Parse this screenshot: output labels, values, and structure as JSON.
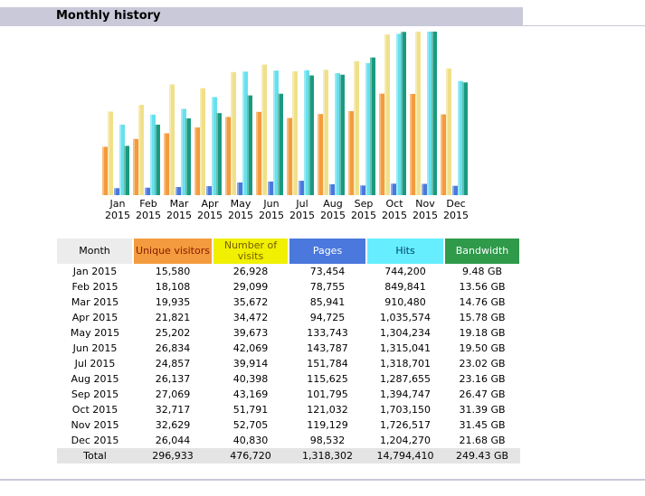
{
  "section": {
    "title": "Monthly history"
  },
  "colors": {
    "unique_visitors": "#f39b3e",
    "visits": "#f0f000",
    "pages": "#4a78dc",
    "hits": "#66eeff",
    "bandwidth": "#2e9a4a",
    "month_header": "#ececec",
    "total_row": "#e4e4e4",
    "header_bar": "#c9c9d9"
  },
  "table": {
    "headers": {
      "month": "Month",
      "unique": "Unique visitors",
      "visits": "Number of visits",
      "pages": "Pages",
      "hits": "Hits",
      "bandwidth": "Bandwidth"
    },
    "rows": [
      {
        "month": "Jan 2015",
        "unique": "15,580",
        "visits": "26,928",
        "pages": "73,454",
        "hits": "744,200",
        "bandwidth": "9.48 GB"
      },
      {
        "month": "Feb 2015",
        "unique": "18,108",
        "visits": "29,099",
        "pages": "78,755",
        "hits": "849,841",
        "bandwidth": "13.56 GB"
      },
      {
        "month": "Mar 2015",
        "unique": "19,935",
        "visits": "35,672",
        "pages": "85,941",
        "hits": "910,480",
        "bandwidth": "14.76 GB"
      },
      {
        "month": "Apr 2015",
        "unique": "21,821",
        "visits": "34,472",
        "pages": "94,725",
        "hits": "1,035,574",
        "bandwidth": "15.78 GB"
      },
      {
        "month": "May 2015",
        "unique": "25,202",
        "visits": "39,673",
        "pages": "133,743",
        "hits": "1,304,234",
        "bandwidth": "19.18 GB"
      },
      {
        "month": "Jun 2015",
        "unique": "26,834",
        "visits": "42,069",
        "pages": "143,787",
        "hits": "1,315,041",
        "bandwidth": "19.50 GB"
      },
      {
        "month": "Jul 2015",
        "unique": "24,857",
        "visits": "39,914",
        "pages": "151,784",
        "hits": "1,318,701",
        "bandwidth": "23.02 GB"
      },
      {
        "month": "Aug 2015",
        "unique": "26,137",
        "visits": "40,398",
        "pages": "115,625",
        "hits": "1,287,655",
        "bandwidth": "23.16 GB"
      },
      {
        "month": "Sep 2015",
        "unique": "27,069",
        "visits": "43,169",
        "pages": "101,795",
        "hits": "1,394,747",
        "bandwidth": "26.47 GB"
      },
      {
        "month": "Oct 2015",
        "unique": "32,717",
        "visits": "51,791",
        "pages": "121,032",
        "hits": "1,703,150",
        "bandwidth": "31.39 GB"
      },
      {
        "month": "Nov 2015",
        "unique": "32,629",
        "visits": "52,705",
        "pages": "119,129",
        "hits": "1,726,517",
        "bandwidth": "31.45 GB"
      },
      {
        "month": "Dec 2015",
        "unique": "26,044",
        "visits": "40,830",
        "pages": "98,532",
        "hits": "1,204,270",
        "bandwidth": "21.68 GB"
      }
    ],
    "total": {
      "month": "Total",
      "unique": "296,933",
      "visits": "476,720",
      "pages": "1,318,302",
      "hits": "14,794,410",
      "bandwidth": "249.43 GB"
    }
  },
  "chart_data": {
    "type": "bar",
    "categories": [
      "Jan 2015",
      "Feb 2015",
      "Mar 2015",
      "Apr 2015",
      "May 2015",
      "Jun 2015",
      "Jul 2015",
      "Aug 2015",
      "Sep 2015",
      "Oct 2015",
      "Nov 2015",
      "Dec 2015"
    ],
    "category_labels": [
      [
        "Jan",
        "2015"
      ],
      [
        "Feb",
        "2015"
      ],
      [
        "Mar",
        "2015"
      ],
      [
        "Apr",
        "2015"
      ],
      [
        "May",
        "2015"
      ],
      [
        "Jun",
        "2015"
      ],
      [
        "Jul",
        "2015"
      ],
      [
        "Aug",
        "2015"
      ],
      [
        "Sep",
        "2015"
      ],
      [
        "Oct",
        "2015"
      ],
      [
        "Nov",
        "2015"
      ],
      [
        "Dec",
        "2015"
      ]
    ],
    "series": [
      {
        "key": "unique",
        "color": "#f39b3e",
        "values": [
          15580,
          18108,
          19935,
          21821,
          25202,
          26834,
          24857,
          26137,
          27069,
          32717,
          32629,
          26044
        ]
      },
      {
        "key": "visits",
        "color": "#f0e08a",
        "values": [
          26928,
          29099,
          35672,
          34472,
          39673,
          42069,
          39914,
          40398,
          43169,
          51791,
          52705,
          40830
        ]
      },
      {
        "key": "pages",
        "color": "#4a78dc",
        "values": [
          73454,
          78755,
          85941,
          94725,
          133743,
          143787,
          151784,
          115625,
          101795,
          121032,
          119129,
          98532
        ]
      },
      {
        "key": "hits",
        "color": "#66e0ee",
        "values": [
          744200,
          849841,
          910480,
          1035574,
          1304234,
          1315041,
          1318701,
          1287655,
          1394747,
          1703150,
          1726517,
          1204270
        ]
      },
      {
        "key": "bandwidth",
        "color": "#1a9a80",
        "values": [
          9.48,
          13.56,
          14.76,
          15.78,
          19.18,
          19.5,
          23.02,
          23.16,
          26.47,
          31.39,
          31.45,
          21.68
        ]
      }
    ],
    "scale_groups": {
      "visitors_visits": [
        "unique",
        "visits"
      ],
      "pages_hits": [
        "pages",
        "hits"
      ],
      "bandwidth": [
        "bandwidth"
      ]
    }
  }
}
